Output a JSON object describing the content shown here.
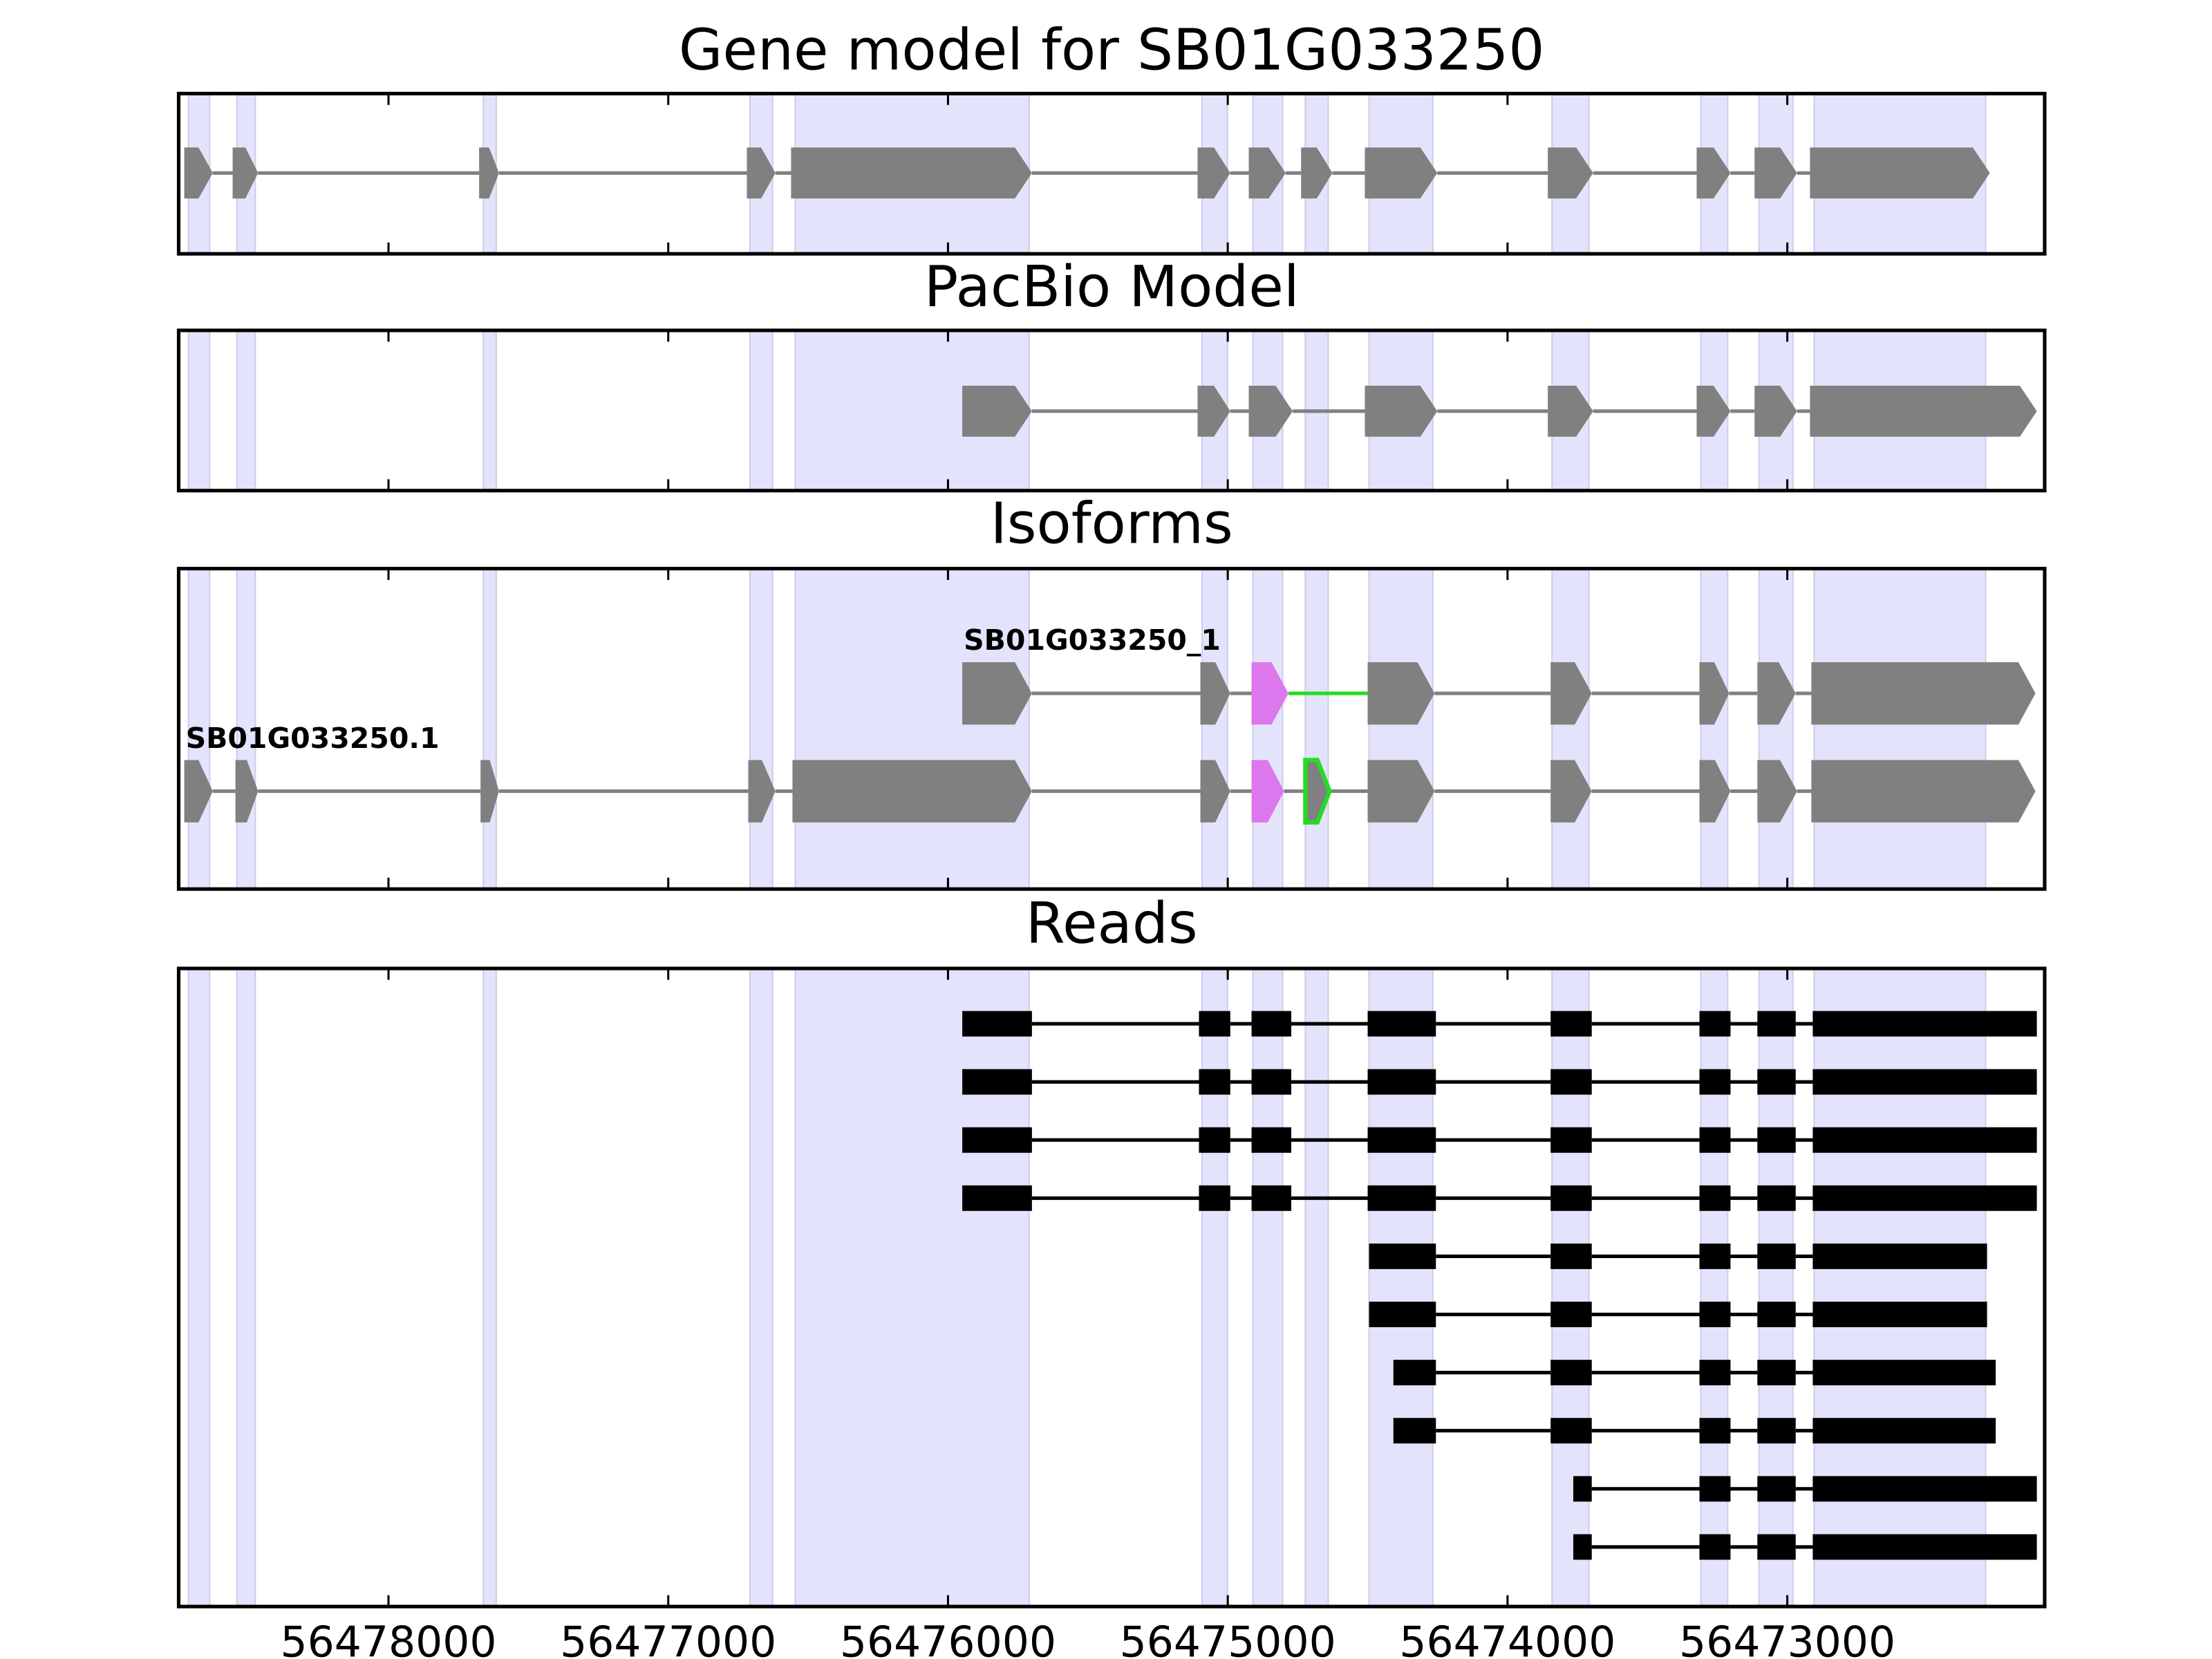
{
  "chart_data": {
    "type": "gene-track",
    "xlim": [
      56478750,
      56472080
    ],
    "xticks": [
      56478000,
      56477000,
      56476000,
      56475000,
      56474000,
      56473000
    ],
    "exon_color": "#808080",
    "highlight_color": "#e3e3fb",
    "highlights": [
      [
        56478715,
        56478639
      ],
      [
        56478542,
        56478476
      ],
      [
        56477661,
        56477615
      ],
      [
        56476708,
        56476627
      ],
      [
        56476546,
        56475710
      ],
      [
        56475092,
        56475001
      ],
      [
        56474910,
        56474804
      ],
      [
        56474723,
        56474641
      ],
      [
        56474495,
        56474267
      ],
      [
        56473841,
        56473709
      ],
      [
        56473309,
        56473213
      ],
      [
        56473101,
        56472980
      ],
      [
        56472904,
        56472291
      ]
    ],
    "panels": [
      {
        "title": "Gene model for SB01G033250",
        "style": "arrow",
        "rows": [
          {
            "exons": [
              {
                "start": 56478730,
                "end": 56478628
              },
              {
                "start": 56478557,
                "end": 56478466
              },
              {
                "start": 56477676,
                "end": 56477605
              },
              {
                "start": 56476719,
                "end": 56476617
              },
              {
                "start": 56476561,
                "end": 56475700
              },
              {
                "start": 56475108,
                "end": 56474991
              },
              {
                "start": 56474925,
                "end": 56474793
              },
              {
                "start": 56474738,
                "end": 56474626
              },
              {
                "start": 56474510,
                "end": 56474251
              },
              {
                "start": 56473856,
                "end": 56473694
              },
              {
                "start": 56473324,
                "end": 56473203
              },
              {
                "start": 56473117,
                "end": 56472965
              },
              {
                "start": 56472919,
                "end": 56472276
              }
            ]
          }
        ]
      },
      {
        "title": "PacBio Model",
        "style": "arrow",
        "rows": [
          {
            "exons": [
              {
                "start": 56475949,
                "end": 56475700
              },
              {
                "start": 56475108,
                "end": 56474991
              },
              {
                "start": 56474925,
                "end": 56474768
              },
              {
                "start": 56474510,
                "end": 56474251
              },
              {
                "start": 56473856,
                "end": 56473694
              },
              {
                "start": 56473324,
                "end": 56473203
              },
              {
                "start": 56473117,
                "end": 56472965
              },
              {
                "start": 56472919,
                "end": 56472108
              }
            ]
          }
        ]
      },
      {
        "title": "Isoforms",
        "style": "arrow",
        "rows": [
          {
            "label": "SB01G033250_1",
            "exons": [
              {
                "start": 56475949,
                "end": 56475700
              },
              {
                "start": 56475098,
                "end": 56474991
              },
              {
                "start": 56474915,
                "end": 56474783,
                "color": "#dd77ee"
              },
              {
                "start": 56474500,
                "end": 56474261,
                "intron_color": "#22dd22"
              },
              {
                "start": 56473846,
                "end": 56473699
              },
              {
                "start": 56473314,
                "end": 56473208
              },
              {
                "start": 56473107,
                "end": 56472970
              },
              {
                "start": 56472914,
                "end": 56472113
              }
            ]
          },
          {
            "label": "SB01G033250.1",
            "exons": [
              {
                "start": 56478730,
                "end": 56478628
              },
              {
                "start": 56478547,
                "end": 56478466
              },
              {
                "start": 56477671,
                "end": 56477605
              },
              {
                "start": 56476714,
                "end": 56476617
              },
              {
                "start": 56476556,
                "end": 56475700
              },
              {
                "start": 56475098,
                "end": 56474991
              },
              {
                "start": 56474915,
                "end": 56474799,
                "color": "#dd77ee"
              },
              {
                "start": 56474723,
                "end": 56474636,
                "color": "#808080",
                "outline": "#22dd22"
              },
              {
                "start": 56474500,
                "end": 56474261
              },
              {
                "start": 56473846,
                "end": 56473699
              },
              {
                "start": 56473314,
                "end": 56473203
              },
              {
                "start": 56473107,
                "end": 56472965
              },
              {
                "start": 56472914,
                "end": 56472113
              }
            ]
          }
        ]
      },
      {
        "title": "Reads",
        "style": "block",
        "color": "#000000",
        "rows": [
          {
            "exons": [
              {
                "start": 56475949,
                "end": 56475700
              },
              {
                "start": 56475103,
                "end": 56474991
              },
              {
                "start": 56474915,
                "end": 56474773
              },
              {
                "start": 56474500,
                "end": 56474256
              },
              {
                "start": 56473846,
                "end": 56473699
              },
              {
                "start": 56473314,
                "end": 56473203
              },
              {
                "start": 56473107,
                "end": 56472970
              },
              {
                "start": 56472909,
                "end": 56472108
              }
            ]
          },
          {
            "exons": [
              {
                "start": 56475949,
                "end": 56475700
              },
              {
                "start": 56475103,
                "end": 56474991
              },
              {
                "start": 56474915,
                "end": 56474773
              },
              {
                "start": 56474500,
                "end": 56474256
              },
              {
                "start": 56473846,
                "end": 56473699
              },
              {
                "start": 56473314,
                "end": 56473203
              },
              {
                "start": 56473107,
                "end": 56472970
              },
              {
                "start": 56472909,
                "end": 56472108
              }
            ]
          },
          {
            "exons": [
              {
                "start": 56475949,
                "end": 56475700
              },
              {
                "start": 56475103,
                "end": 56474991
              },
              {
                "start": 56474915,
                "end": 56474773
              },
              {
                "start": 56474500,
                "end": 56474256
              },
              {
                "start": 56473846,
                "end": 56473699
              },
              {
                "start": 56473314,
                "end": 56473203
              },
              {
                "start": 56473107,
                "end": 56472970
              },
              {
                "start": 56472909,
                "end": 56472108
              }
            ]
          },
          {
            "exons": [
              {
                "start": 56475949,
                "end": 56475700
              },
              {
                "start": 56475103,
                "end": 56474991
              },
              {
                "start": 56474915,
                "end": 56474773
              },
              {
                "start": 56474500,
                "end": 56474256
              },
              {
                "start": 56473846,
                "end": 56473699
              },
              {
                "start": 56473314,
                "end": 56473203
              },
              {
                "start": 56473107,
                "end": 56472970
              },
              {
                "start": 56472909,
                "end": 56472108
              }
            ]
          },
          {
            "exons": [
              {
                "start": 56474495,
                "end": 56474256
              },
              {
                "start": 56473846,
                "end": 56473699
              },
              {
                "start": 56473314,
                "end": 56473203
              },
              {
                "start": 56473107,
                "end": 56472970
              },
              {
                "start": 56472909,
                "end": 56472286
              }
            ]
          },
          {
            "exons": [
              {
                "start": 56474495,
                "end": 56474256
              },
              {
                "start": 56473846,
                "end": 56473699
              },
              {
                "start": 56473314,
                "end": 56473203
              },
              {
                "start": 56473107,
                "end": 56472970
              },
              {
                "start": 56472909,
                "end": 56472286
              }
            ]
          },
          {
            "exons": [
              {
                "start": 56474408,
                "end": 56474256
              },
              {
                "start": 56473846,
                "end": 56473699
              },
              {
                "start": 56473314,
                "end": 56473203
              },
              {
                "start": 56473107,
                "end": 56472970
              },
              {
                "start": 56472909,
                "end": 56472255
              }
            ]
          },
          {
            "exons": [
              {
                "start": 56474408,
                "end": 56474256
              },
              {
                "start": 56473846,
                "end": 56473699
              },
              {
                "start": 56473314,
                "end": 56473203
              },
              {
                "start": 56473107,
                "end": 56472970
              },
              {
                "start": 56472909,
                "end": 56472255
              }
            ]
          },
          {
            "exons": [
              {
                "start": 56473765,
                "end": 56473699
              },
              {
                "start": 56473314,
                "end": 56473203
              },
              {
                "start": 56473107,
                "end": 56472970
              },
              {
                "start": 56472909,
                "end": 56472108
              }
            ]
          },
          {
            "exons": [
              {
                "start": 56473765,
                "end": 56473699
              },
              {
                "start": 56473314,
                "end": 56473203
              },
              {
                "start": 56473107,
                "end": 56472970
              },
              {
                "start": 56472909,
                "end": 56472108
              }
            ]
          }
        ]
      }
    ]
  }
}
